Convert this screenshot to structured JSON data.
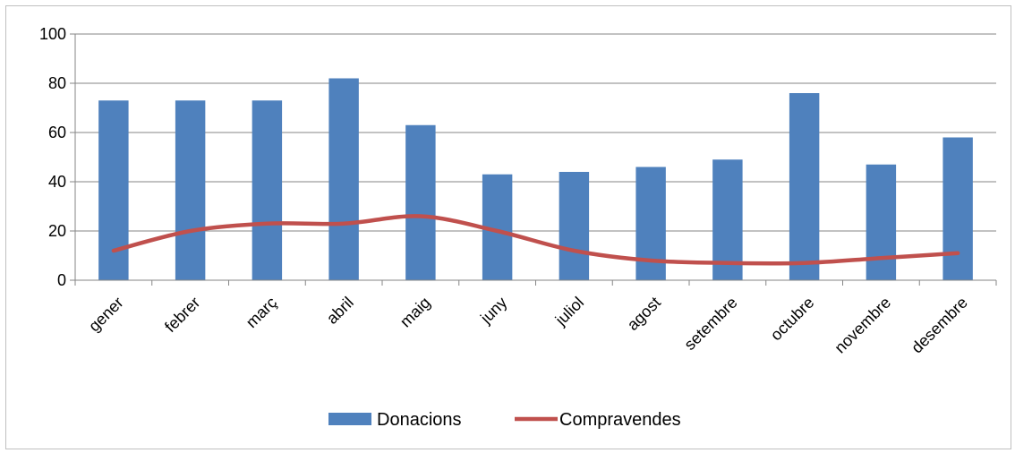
{
  "chart_data": {
    "type": "bar",
    "categories": [
      "gener",
      "febrer",
      "març",
      "abril",
      "maig",
      "juny",
      "juliol",
      "agost",
      "setembre",
      "octubre",
      "novembre",
      "desembre"
    ],
    "series": [
      {
        "name": "Donacions",
        "type": "bar",
        "color": "#4f81bd",
        "values": [
          73,
          73,
          73,
          82,
          63,
          43,
          44,
          46,
          49,
          76,
          47,
          58
        ]
      },
      {
        "name": "Compravendes",
        "type": "line",
        "color": "#c0504d",
        "values": [
          12,
          20,
          23,
          23,
          26,
          20,
          12,
          8,
          7,
          7,
          9,
          11
        ]
      }
    ],
    "title": "",
    "xlabel": "",
    "ylabel": "",
    "ylim": [
      0,
      100
    ],
    "yticks": [
      "0",
      "20",
      "40",
      "60",
      "80",
      "100"
    ],
    "grid": true,
    "legend": "bottom"
  }
}
